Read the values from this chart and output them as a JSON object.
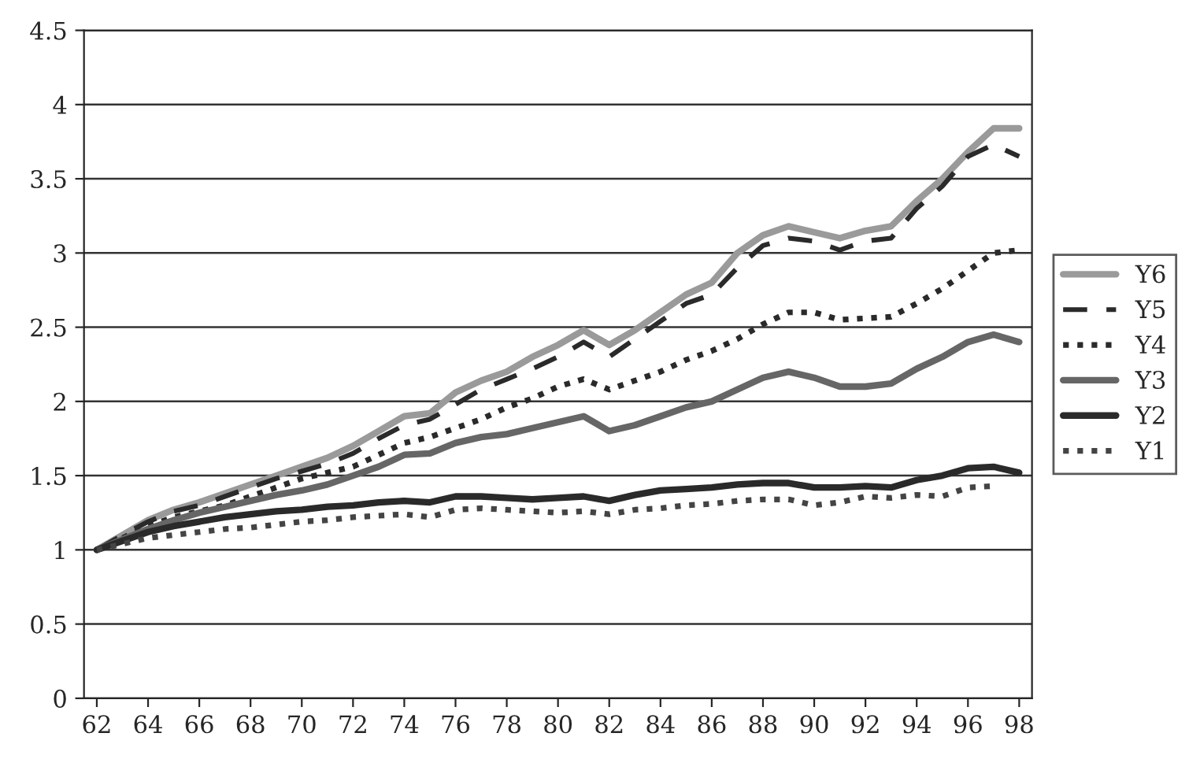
{
  "chart_data": {
    "type": "line",
    "x": [
      62,
      63,
      64,
      65,
      66,
      67,
      68,
      69,
      70,
      71,
      72,
      73,
      74,
      75,
      76,
      77,
      78,
      79,
      80,
      81,
      82,
      83,
      84,
      85,
      86,
      87,
      88,
      89,
      90,
      91,
      92,
      93,
      94,
      95,
      96,
      97,
      98
    ],
    "series": [
      {
        "name": "Y6",
        "color": "#9a9a9a",
        "line_style": "solid",
        "values": [
          1.0,
          1.1,
          1.2,
          1.27,
          1.32,
          1.38,
          1.44,
          1.5,
          1.56,
          1.62,
          1.7,
          1.8,
          1.9,
          1.92,
          2.06,
          2.14,
          2.2,
          2.3,
          2.38,
          2.48,
          2.38,
          2.48,
          2.6,
          2.72,
          2.8,
          3.0,
          3.12,
          3.18,
          3.14,
          3.1,
          3.15,
          3.18,
          3.35,
          3.5,
          3.68,
          3.84,
          3.84
        ]
      },
      {
        "name": "Y5",
        "color": "#2a2a2a",
        "line_style": "dashed",
        "values": [
          1.0,
          1.1,
          1.19,
          1.26,
          1.3,
          1.36,
          1.42,
          1.48,
          1.53,
          1.58,
          1.65,
          1.75,
          1.84,
          1.88,
          1.98,
          2.08,
          2.15,
          2.22,
          2.3,
          2.4,
          2.3,
          2.42,
          2.54,
          2.66,
          2.72,
          2.9,
          3.05,
          3.1,
          3.08,
          3.02,
          3.08,
          3.1,
          3.3,
          3.45,
          3.65,
          3.73,
          3.65
        ]
      },
      {
        "name": "Y4",
        "color": "#2a2a2a",
        "line_style": "dotted",
        "values": [
          1.0,
          1.08,
          1.16,
          1.22,
          1.26,
          1.3,
          1.36,
          1.42,
          1.48,
          1.52,
          1.56,
          1.64,
          1.72,
          1.76,
          1.82,
          1.88,
          1.96,
          2.02,
          2.1,
          2.15,
          2.08,
          2.14,
          2.2,
          2.28,
          2.34,
          2.42,
          2.52,
          2.6,
          2.6,
          2.55,
          2.56,
          2.57,
          2.66,
          2.76,
          2.88,
          3.0,
          3.02
        ]
      },
      {
        "name": "Y3",
        "color": "#666666",
        "line_style": "solid",
        "values": [
          1.0,
          1.07,
          1.14,
          1.2,
          1.25,
          1.29,
          1.33,
          1.37,
          1.4,
          1.44,
          1.5,
          1.56,
          1.64,
          1.65,
          1.72,
          1.76,
          1.78,
          1.82,
          1.86,
          1.9,
          1.8,
          1.84,
          1.9,
          1.96,
          2.0,
          2.08,
          2.16,
          2.2,
          2.16,
          2.1,
          2.1,
          2.12,
          2.22,
          2.3,
          2.4,
          2.45,
          2.4
        ]
      },
      {
        "name": "Y2",
        "color": "#2a2a2a",
        "line_style": "solid",
        "values": [
          1.0,
          1.06,
          1.12,
          1.16,
          1.19,
          1.22,
          1.24,
          1.26,
          1.27,
          1.29,
          1.3,
          1.32,
          1.33,
          1.32,
          1.36,
          1.36,
          1.35,
          1.34,
          1.35,
          1.36,
          1.33,
          1.37,
          1.4,
          1.41,
          1.42,
          1.44,
          1.45,
          1.45,
          1.42,
          1.42,
          1.43,
          1.42,
          1.47,
          1.5,
          1.55,
          1.56,
          1.52
        ]
      },
      {
        "name": "Y1",
        "color": "#444444",
        "line_style": "dotted",
        "values": [
          1.0,
          1.04,
          1.08,
          1.1,
          1.12,
          1.14,
          1.15,
          1.17,
          1.19,
          1.2,
          1.22,
          1.23,
          1.24,
          1.22,
          1.27,
          1.28,
          1.27,
          1.26,
          1.25,
          1.26,
          1.24,
          1.27,
          1.28,
          1.3,
          1.31,
          1.33,
          1.34,
          1.34,
          1.3,
          1.32,
          1.36,
          1.35,
          1.37,
          1.36,
          1.42,
          1.43,
          null
        ]
      }
    ],
    "xlim": [
      61.5,
      98.5
    ],
    "xticks": [
      62,
      64,
      66,
      68,
      70,
      72,
      74,
      76,
      78,
      80,
      82,
      84,
      86,
      88,
      90,
      92,
      94,
      96,
      98
    ],
    "ylim": [
      0,
      4.5
    ],
    "yticks": [
      0,
      0.5,
      1,
      1.5,
      2,
      2.5,
      3,
      3.5,
      4,
      4.5
    ],
    "grid": "y",
    "legend": "right",
    "marker": "none"
  }
}
